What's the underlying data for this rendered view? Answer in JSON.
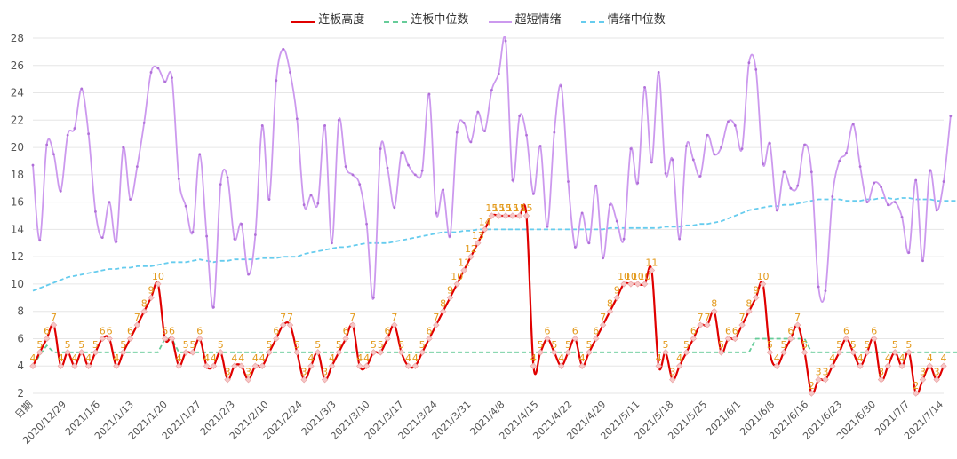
{
  "chart_data": {
    "type": "line",
    "title": "",
    "ylim": [
      2,
      28
    ],
    "yticks": [
      2,
      4,
      6,
      8,
      10,
      12,
      14,
      16,
      18,
      20,
      22,
      24,
      26,
      28
    ],
    "x_tick_labels": [
      "日期",
      "2020/12/29",
      "2021/1/6",
      "2021/1/13",
      "2021/1/20",
      "2021/1/27",
      "2021/2/3",
      "2021/2/10",
      "2021/2/24",
      "2021/3/3",
      "2021/3/10",
      "2021/3/17",
      "2021/3/24",
      "2021/3/31",
      "2021/4/8",
      "2021/4/15",
      "2021/4/22",
      "2021/4/29",
      "2021/5/11",
      "2021/5/18",
      "2021/5/25",
      "2021/6/1",
      "2021/6/8",
      "2021/6/16",
      "2021/6/23",
      "2021/6/30",
      "2021/7/7",
      "2021/7/14"
    ],
    "series": [
      {
        "name": "连板高度",
        "color": "#e00000",
        "show_labels": true,
        "values": [
          4,
          5,
          6,
          7,
          4,
          5,
          4,
          5,
          4,
          5,
          6,
          6,
          4,
          5,
          6,
          7,
          8,
          9,
          10,
          6,
          6,
          4,
          5,
          5,
          6,
          4,
          4,
          5,
          3,
          4,
          4,
          3,
          4,
          4,
          5,
          6,
          7,
          7,
          5,
          3,
          4,
          5,
          3,
          4,
          5,
          6,
          7,
          4,
          4,
          5,
          5,
          6,
          7,
          5,
          4,
          4,
          5,
          6,
          7,
          8,
          9,
          10,
          11,
          12,
          13,
          14,
          15,
          15,
          15,
          15,
          15,
          15,
          4,
          5,
          6,
          5,
          4,
          5,
          6,
          4,
          5,
          6,
          7,
          8,
          9,
          10,
          10,
          10,
          10,
          11,
          4,
          5,
          3,
          4,
          5,
          6,
          7,
          7,
          8,
          5,
          6,
          6,
          7,
          8,
          9,
          10,
          5,
          4,
          5,
          6,
          7,
          5,
          2,
          3,
          3,
          4,
          5,
          6,
          5,
          4,
          5,
          6,
          3,
          4,
          5,
          4,
          5,
          2,
          3,
          4,
          3,
          4
        ]
      },
      {
        "name": "连板中位数",
        "color": "#66cc99",
        "show_labels": false,
        "values": [
          4,
          4.8,
          5.5,
          5,
          5,
          5,
          5,
          5,
          5,
          5,
          5,
          5,
          5,
          5,
          5,
          5,
          5,
          5,
          5,
          6,
          6,
          5,
          5,
          5,
          5,
          5,
          5,
          5,
          5,
          5,
          5,
          5,
          5,
          5,
          5,
          5,
          5,
          5,
          5,
          5,
          5,
          5,
          5,
          5,
          5,
          5,
          5,
          5,
          5,
          5,
          5,
          5,
          5,
          5,
          5,
          5,
          5,
          5,
          5,
          5,
          5,
          5,
          5,
          5,
          5,
          5,
          5,
          5,
          5,
          5,
          5,
          5,
          5,
          5,
          5,
          5,
          5,
          5,
          5,
          5,
          5,
          5,
          5,
          5,
          5,
          5,
          5,
          5,
          5,
          5,
          5,
          5,
          5,
          5,
          5,
          5,
          5,
          5,
          5,
          5,
          5,
          5,
          5,
          5,
          6,
          6,
          6,
          6,
          6,
          6,
          6,
          6,
          5,
          5,
          5,
          5,
          5,
          5,
          5,
          5,
          5,
          5,
          5,
          5,
          5,
          5,
          5,
          5,
          5,
          5,
          5,
          5,
          5,
          5
        ]
      },
      {
        "name": "超短情绪",
        "color": "#cc99ee",
        "show_labels": false,
        "values": [
          18.7,
          13.2,
          20.2,
          19.5,
          16.8,
          20.9,
          21.4,
          24.3,
          21.0,
          15.3,
          13.4,
          16.0,
          13.1,
          20.0,
          16.2,
          18.6,
          21.8,
          25.5,
          25.8,
          24.8,
          25.1,
          17.7,
          15.7,
          13.8,
          19.5,
          13.5,
          8.3,
          17.3,
          17.8,
          13.3,
          14.4,
          10.7,
          13.6,
          21.6,
          16.2,
          24.9,
          27.2,
          25.5,
          22.1,
          15.8,
          16.5,
          15.9,
          21.6,
          13.0,
          22.0,
          18.6,
          18.0,
          17.3,
          14.4,
          9.0,
          19.9,
          18.5,
          15.6,
          19.6,
          18.7,
          18.0,
          18.3,
          23.9,
          15.2,
          16.9,
          13.5,
          21.1,
          21.8,
          20.4,
          22.6,
          21.2,
          24.2,
          25.4,
          27.8,
          17.6,
          22.3,
          20.9,
          16.6,
          20.1,
          14.2,
          21.1,
          24.5,
          17.5,
          12.7,
          15.2,
          13.0,
          17.2,
          11.9,
          15.8,
          14.6,
          13.3,
          19.9,
          17.4,
          24.4,
          18.9,
          25.5,
          18.1,
          19.1,
          13.3,
          20.1,
          19.1,
          17.9,
          20.9,
          19.5,
          20.0,
          21.9,
          21.6,
          19.9,
          26.2,
          25.7,
          18.8,
          20.3,
          15.4,
          18.2,
          17.0,
          17.2,
          20.2,
          18.2,
          9.8,
          9.5,
          16.4,
          19.0,
          19.6,
          21.7,
          18.6,
          16.0,
          17.4,
          17.1,
          15.8,
          16.0,
          14.9,
          12.3,
          17.6,
          11.7,
          18.3,
          15.4,
          17.5,
          22.3
        ]
      },
      {
        "name": "情绪中位数",
        "color": "#66ccee",
        "show_labels": false,
        "values": [
          9.5,
          9.7,
          9.9,
          10.1,
          10.3,
          10.5,
          10.6,
          10.7,
          10.8,
          10.9,
          11.0,
          11.1,
          11.1,
          11.2,
          11.2,
          11.3,
          11.3,
          11.3,
          11.4,
          11.5,
          11.6,
          11.6,
          11.6,
          11.7,
          11.8,
          11.7,
          11.6,
          11.7,
          11.7,
          11.8,
          11.8,
          11.8,
          11.8,
          11.9,
          11.9,
          11.9,
          12.0,
          12.0,
          12.0,
          12.2,
          12.3,
          12.4,
          12.5,
          12.6,
          12.7,
          12.7,
          12.8,
          12.9,
          13.0,
          13.0,
          13.0,
          13.0,
          13.1,
          13.2,
          13.3,
          13.4,
          13.5,
          13.6,
          13.7,
          13.8,
          13.8,
          13.8,
          13.9,
          13.9,
          14.0,
          14.0,
          14.0,
          14.0,
          14.0,
          14.0,
          14.0,
          14.0,
          14.0,
          14.0,
          14.0,
          14.0,
          14.0,
          14.0,
          14.0,
          14.0,
          14.0,
          14.0,
          14.0,
          14.1,
          14.1,
          14.1,
          14.1,
          14.1,
          14.1,
          14.1,
          14.1,
          14.2,
          14.2,
          14.2,
          14.3,
          14.3,
          14.4,
          14.4,
          14.5,
          14.6,
          14.8,
          15.0,
          15.2,
          15.4,
          15.5,
          15.6,
          15.7,
          15.7,
          15.8,
          15.8,
          15.9,
          16.0,
          16.1,
          16.2,
          16.2,
          16.2,
          16.2,
          16.1,
          16.1,
          16.1,
          16.2,
          16.2,
          16.3,
          16.3,
          16.2,
          16.3,
          16.3,
          16.2,
          16.2,
          16.2,
          16.1,
          16.1,
          16.1,
          16.1
        ]
      }
    ]
  }
}
